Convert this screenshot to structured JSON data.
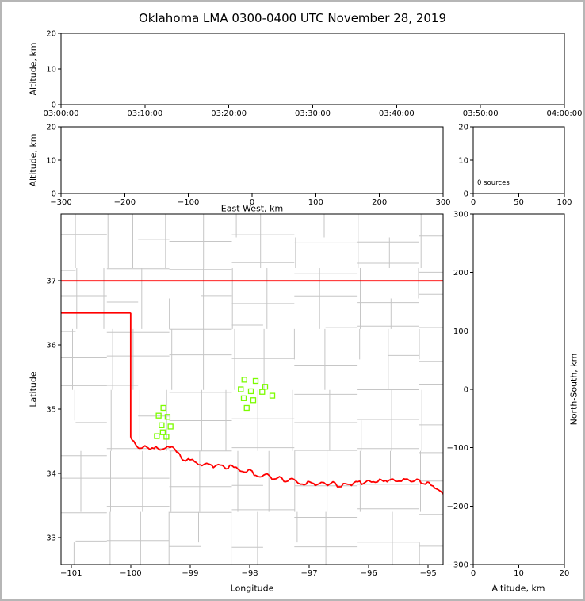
{
  "title": "Oklahoma LMA 0300-0400 UTC November 28, 2019",
  "colors": {
    "background": "#ffffff",
    "figure_border": "#b6b6b6",
    "axis_frame": "#000000",
    "county_lines": "#c6c6c6",
    "state_border": "#ff0000",
    "stations": "#7cfc00"
  },
  "chart_data": [
    {
      "id": "time_height",
      "type": "scatter",
      "xlabel": "",
      "ylabel": "Altitude, km",
      "xlim": [
        0,
        3600
      ],
      "xticks": [
        0,
        600,
        1200,
        1800,
        2400,
        3000,
        3600
      ],
      "xtick_labels": [
        "03:00:00",
        "03:10:00",
        "03:20:00",
        "03:30:00",
        "03:40:00",
        "03:50:00",
        "04:00:00"
      ],
      "ylim": [
        0,
        20
      ],
      "yticks": [
        0,
        10,
        20
      ],
      "points": []
    },
    {
      "id": "ew_height",
      "type": "scatter",
      "xlabel": "East-West, km",
      "ylabel": "Altitude, km",
      "xlim": [
        -300,
        300
      ],
      "xticks": [
        -300,
        -200,
        -100,
        0,
        100,
        200,
        300
      ],
      "ylim": [
        0,
        20
      ],
      "yticks": [
        0,
        10,
        20
      ],
      "points": []
    },
    {
      "id": "alt_hist",
      "type": "histogram",
      "annotation": "0 sources",
      "xlim": [
        0,
        100
      ],
      "xticks": [
        0,
        50,
        100
      ],
      "ylim": [
        0,
        20
      ],
      "yticks": [
        0,
        10,
        20
      ],
      "values": []
    },
    {
      "id": "plan",
      "type": "scatter",
      "xlabel": "Longitude",
      "ylabel": "Latitude",
      "xlim": [
        -101.17,
        -94.75
      ],
      "xticks": [
        -101,
        -100,
        -99,
        -98,
        -97,
        -96,
        -95
      ],
      "ylim": [
        32.58,
        38.04
      ],
      "yticks": [
        33,
        34,
        35,
        36,
        37
      ],
      "stations": [
        [
          -99.45,
          35.02
        ],
        [
          -99.53,
          34.9
        ],
        [
          -99.38,
          34.88
        ],
        [
          -99.48,
          34.75
        ],
        [
          -99.33,
          34.73
        ],
        [
          -99.56,
          34.58
        ],
        [
          -99.4,
          34.57
        ],
        [
          -99.46,
          34.64
        ],
        [
          -98.09,
          35.46
        ],
        [
          -97.9,
          35.44
        ],
        [
          -98.15,
          35.31
        ],
        [
          -97.98,
          35.28
        ],
        [
          -97.79,
          35.27
        ],
        [
          -97.74,
          35.35
        ],
        [
          -97.62,
          35.21
        ],
        [
          -98.1,
          35.17
        ],
        [
          -97.94,
          35.14
        ],
        [
          -98.05,
          35.02
        ]
      ],
      "state_border": {
        "segments": [
          [
            [
              -101.17,
              37.0
            ],
            [
              -94.75,
              37.0
            ]
          ],
          [
            [
              -101.17,
              36.5
            ],
            [
              -100.0,
              36.5
            ]
          ],
          [
            [
              -100.0,
              36.5
            ],
            [
              -100.0,
              34.56
            ]
          ]
        ],
        "red_river": [
          [
            -100.0,
            34.56
          ],
          [
            -99.93,
            34.47
          ],
          [
            -99.85,
            34.39
          ],
          [
            -99.76,
            34.43
          ],
          [
            -99.68,
            34.37
          ],
          [
            -99.58,
            34.42
          ],
          [
            -99.48,
            34.37
          ],
          [
            -99.38,
            34.42
          ],
          [
            -99.28,
            34.4
          ],
          [
            -99.21,
            34.33
          ],
          [
            -99.13,
            34.21
          ],
          [
            -99.0,
            34.21
          ],
          [
            -98.9,
            34.17
          ],
          [
            -98.8,
            34.12
          ],
          [
            -98.7,
            34.15
          ],
          [
            -98.61,
            34.09
          ],
          [
            -98.5,
            34.13
          ],
          [
            -98.4,
            34.07
          ],
          [
            -98.31,
            34.13
          ],
          [
            -98.2,
            34.07
          ],
          [
            -98.09,
            34.02
          ],
          [
            -98.0,
            34.06
          ],
          [
            -97.9,
            33.97
          ],
          [
            -97.8,
            33.95
          ],
          [
            -97.7,
            33.99
          ],
          [
            -97.6,
            33.91
          ],
          [
            -97.5,
            33.95
          ],
          [
            -97.4,
            33.87
          ],
          [
            -97.3,
            33.92
          ],
          [
            -97.19,
            33.85
          ],
          [
            -97.09,
            33.82
          ],
          [
            -97.0,
            33.87
          ],
          [
            -96.9,
            33.81
          ],
          [
            -96.8,
            33.86
          ],
          [
            -96.69,
            33.81
          ],
          [
            -96.6,
            33.87
          ],
          [
            -96.5,
            33.79
          ],
          [
            -96.4,
            33.84
          ],
          [
            -96.29,
            33.81
          ],
          [
            -96.19,
            33.87
          ],
          [
            -96.09,
            33.84
          ],
          [
            -96.0,
            33.89
          ],
          [
            -95.89,
            33.86
          ],
          [
            -95.79,
            33.9
          ],
          [
            -95.69,
            33.87
          ],
          [
            -95.59,
            33.91
          ],
          [
            -95.49,
            33.88
          ],
          [
            -95.39,
            33.91
          ],
          [
            -95.29,
            33.87
          ],
          [
            -95.19,
            33.91
          ],
          [
            -95.09,
            33.84
          ],
          [
            -94.99,
            33.86
          ],
          [
            -94.89,
            33.77
          ],
          [
            -94.75,
            33.68
          ]
        ]
      }
    },
    {
      "id": "ns_height",
      "type": "scatter",
      "xlabel": "Altitude, km",
      "ylabel": "North-South, km",
      "xlim": [
        0,
        20
      ],
      "xticks": [
        0,
        10,
        20
      ],
      "ylim": [
        -300,
        300
      ],
      "yticks": [
        -300,
        -200,
        -100,
        0,
        100,
        200,
        300
      ],
      "points": []
    }
  ]
}
